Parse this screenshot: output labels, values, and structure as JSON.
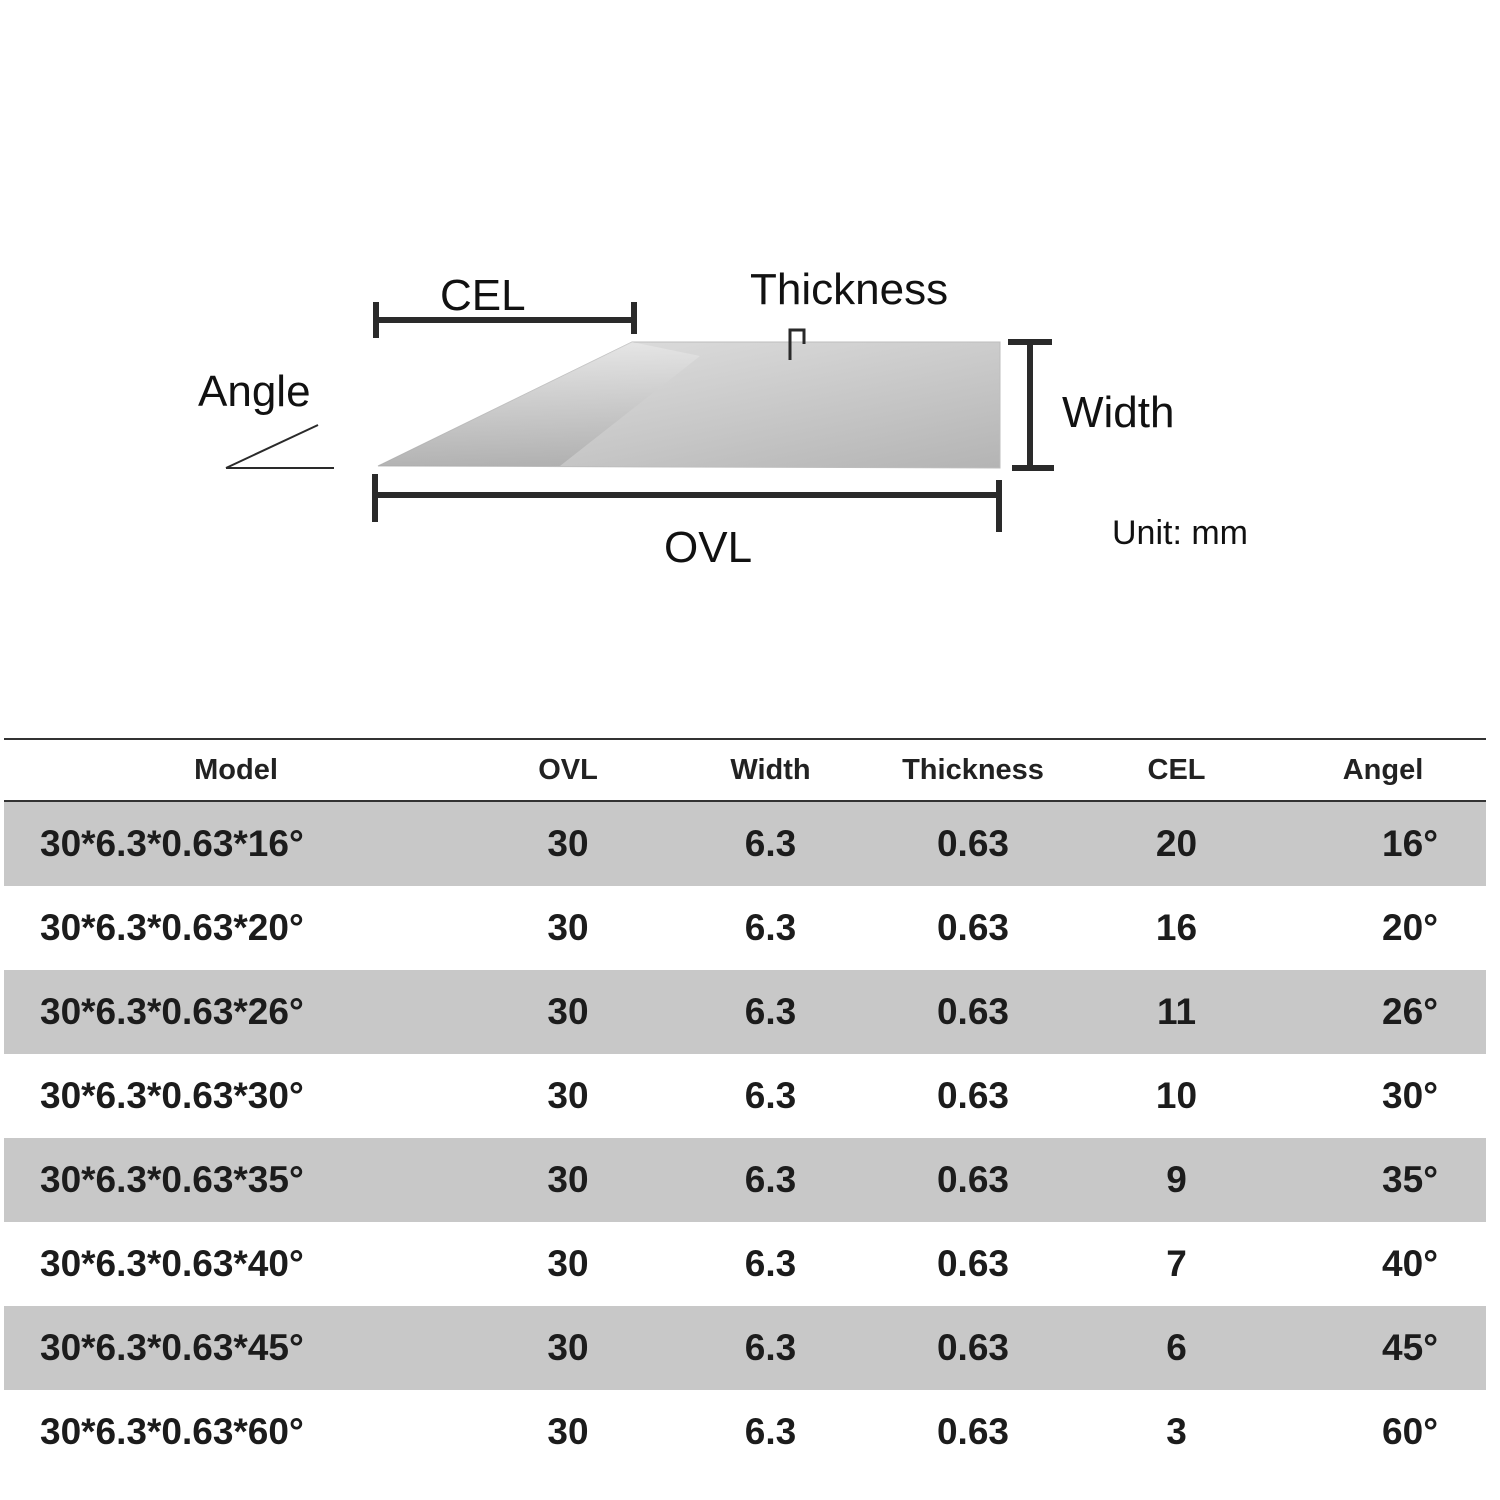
{
  "diagram": {
    "labels": {
      "cel": "CEL",
      "thickness": "Thickness",
      "angle": "Angle",
      "width": "Width",
      "ovl": "OVL",
      "unit": "Unit: mm"
    },
    "colors": {
      "blade_light": "#dcdcdc",
      "blade_dark": "#a9a9a9",
      "line": "#2a2a2a"
    }
  },
  "table": {
    "headers": [
      "Model",
      "OVL",
      "Width",
      "Thickness",
      "CEL",
      "Angel"
    ],
    "rows": [
      [
        "30*6.3*0.63*16°",
        "30",
        "6.3",
        "0.63",
        "20",
        "16°"
      ],
      [
        "30*6.3*0.63*20°",
        "30",
        "6.3",
        "0.63",
        "16",
        "20°"
      ],
      [
        "30*6.3*0.63*26°",
        "30",
        "6.3",
        "0.63",
        "11",
        "26°"
      ],
      [
        "30*6.3*0.63*30°",
        "30",
        "6.3",
        "0.63",
        "10",
        "30°"
      ],
      [
        "30*6.3*0.63*35°",
        "30",
        "6.3",
        "0.63",
        "9",
        "35°"
      ],
      [
        "30*6.3*0.63*40°",
        "30",
        "6.3",
        "0.63",
        "7",
        "40°"
      ],
      [
        "30*6.3*0.63*45°",
        "30",
        "6.3",
        "0.63",
        "6",
        "45°"
      ],
      [
        "30*6.3*0.63*60°",
        "30",
        "6.3",
        "0.63",
        "3",
        "60°"
      ]
    ],
    "colors": {
      "shade": "#c8c8c8",
      "rule": "#333333"
    }
  }
}
